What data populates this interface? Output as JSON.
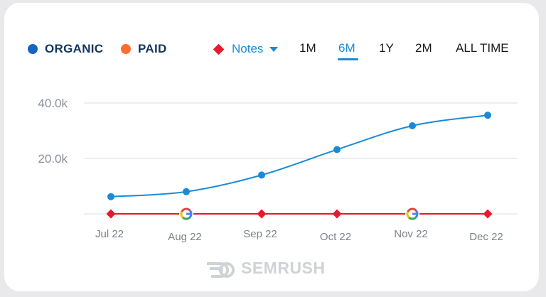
{
  "legend": {
    "organic": {
      "label": "ORGANIC",
      "color": "#1565c0"
    },
    "paid": {
      "label": "PAID",
      "color": "#ff6d2e"
    }
  },
  "notes": {
    "label": "Notes",
    "color": "#e8192c"
  },
  "periods": [
    {
      "label": "1M",
      "active": false
    },
    {
      "label": "6M",
      "active": true
    },
    {
      "label": "1Y",
      "active": false
    },
    {
      "label": "2M",
      "active": false
    },
    {
      "label": "ALL TIME",
      "active": false
    }
  ],
  "branding": {
    "watermark": "SEMRUSH"
  },
  "chart_data": {
    "type": "line",
    "categories": [
      "Jul 22",
      "Aug 22",
      "Sep 22",
      "Oct 22",
      "Nov 22",
      "Dec 22"
    ],
    "series": [
      {
        "name": "ORGANIC",
        "color": "#1a8ad8",
        "values": [
          6200,
          8000,
          14000,
          23200,
          31800,
          35600
        ]
      }
    ],
    "notes_markers": [
      "diamond",
      "google",
      "diamond",
      "diamond",
      "google",
      "diamond"
    ],
    "y_ticks": [
      {
        "value": 20000,
        "label": "20.0k"
      },
      {
        "value": 40000,
        "label": "40.0k"
      }
    ],
    "ylim": [
      0,
      40000
    ],
    "grid": true,
    "legend_position": "top-left",
    "title": "",
    "xlabel": "",
    "ylabel": ""
  }
}
